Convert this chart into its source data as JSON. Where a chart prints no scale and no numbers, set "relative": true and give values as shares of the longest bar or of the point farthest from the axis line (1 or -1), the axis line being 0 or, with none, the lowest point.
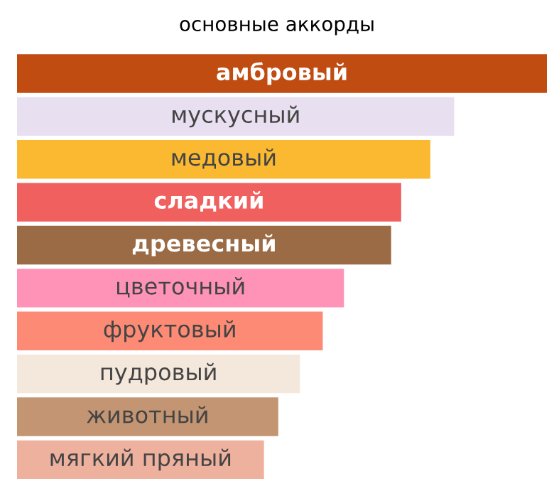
{
  "chart_data": {
    "type": "bar",
    "orientation": "horizontal",
    "relative": true,
    "title": "основные аккорды",
    "categories": [
      "амбровый",
      "мускусный",
      "медовый",
      "сладкий",
      "древесный",
      "цветочный",
      "фруктовый",
      "пудровый",
      "животный",
      "мягкий пряный"
    ],
    "values": [
      1,
      0.825,
      0.78,
      0.725,
      0.706,
      0.617,
      0.577,
      0.534,
      0.493,
      0.466
    ],
    "colors": [
      "#c04c12",
      "#e8dff0",
      "#fbb932",
      "#f0605f",
      "#9a6b45",
      "#fe93b7",
      "#fd8a74",
      "#f4e8dd",
      "#c39572",
      "#eeb19e"
    ],
    "legend": false
  }
}
